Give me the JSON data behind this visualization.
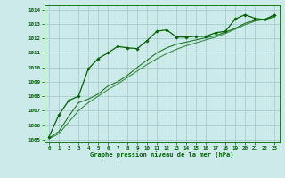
{
  "title": "Graphe pression niveau de la mer (hPa)",
  "background_color": "#cceaea",
  "grid_color": "#aacccc",
  "line_color_main": "#006400",
  "xlim": [
    -0.5,
    23.5
  ],
  "ylim": [
    1004.8,
    1014.3
  ],
  "xtick_labels": [
    "0",
    "1",
    "2",
    "3",
    "4",
    "5",
    "6",
    "7",
    "8",
    "9",
    "10",
    "11",
    "12",
    "13",
    "14",
    "15",
    "16",
    "17",
    "18",
    "19",
    "20",
    "21",
    "22",
    "23"
  ],
  "xtick_vals": [
    0,
    1,
    2,
    3,
    4,
    5,
    6,
    7,
    8,
    9,
    10,
    11,
    12,
    13,
    14,
    15,
    16,
    17,
    18,
    19,
    20,
    21,
    22,
    23
  ],
  "ytick_vals": [
    1005,
    1006,
    1007,
    1008,
    1009,
    1010,
    1011,
    1012,
    1013,
    1014
  ],
  "series1_x": [
    0,
    1,
    2,
    3,
    4,
    5,
    6,
    7,
    8,
    9,
    10,
    11,
    12,
    13,
    14,
    15,
    16,
    17,
    18,
    19,
    20,
    21,
    22,
    23
  ],
  "series1_y": [
    1005.2,
    1006.7,
    1007.7,
    1008.0,
    1009.9,
    1010.6,
    1011.0,
    1011.45,
    1011.35,
    1011.3,
    1011.85,
    1012.5,
    1012.6,
    1012.1,
    1012.1,
    1012.15,
    1012.15,
    1012.4,
    1012.5,
    1013.35,
    1013.65,
    1013.4,
    1013.3,
    1013.65
  ],
  "series2_x": [
    0,
    1,
    2,
    3,
    4,
    5,
    6,
    7,
    8,
    9,
    10,
    11,
    12,
    13,
    14,
    15,
    16,
    17,
    18,
    19,
    20,
    21,
    22,
    23
  ],
  "series2_y": [
    1005.1,
    1005.55,
    1006.6,
    1007.55,
    1007.8,
    1008.15,
    1008.7,
    1009.0,
    1009.45,
    1010.0,
    1010.5,
    1011.0,
    1011.35,
    1011.6,
    1011.75,
    1011.9,
    1012.05,
    1012.2,
    1012.45,
    1012.7,
    1013.05,
    1013.25,
    1013.3,
    1013.5
  ],
  "series3_x": [
    0,
    1,
    2,
    3,
    4,
    5,
    6,
    7,
    8,
    9,
    10,
    11,
    12,
    13,
    14,
    15,
    16,
    17,
    18,
    19,
    20,
    21,
    22,
    23
  ],
  "series3_y": [
    1005.05,
    1005.4,
    1006.2,
    1007.0,
    1007.55,
    1008.0,
    1008.45,
    1008.85,
    1009.3,
    1009.75,
    1010.2,
    1010.6,
    1010.95,
    1011.25,
    1011.5,
    1011.7,
    1011.9,
    1012.1,
    1012.35,
    1012.65,
    1012.95,
    1013.2,
    1013.35,
    1013.55
  ]
}
